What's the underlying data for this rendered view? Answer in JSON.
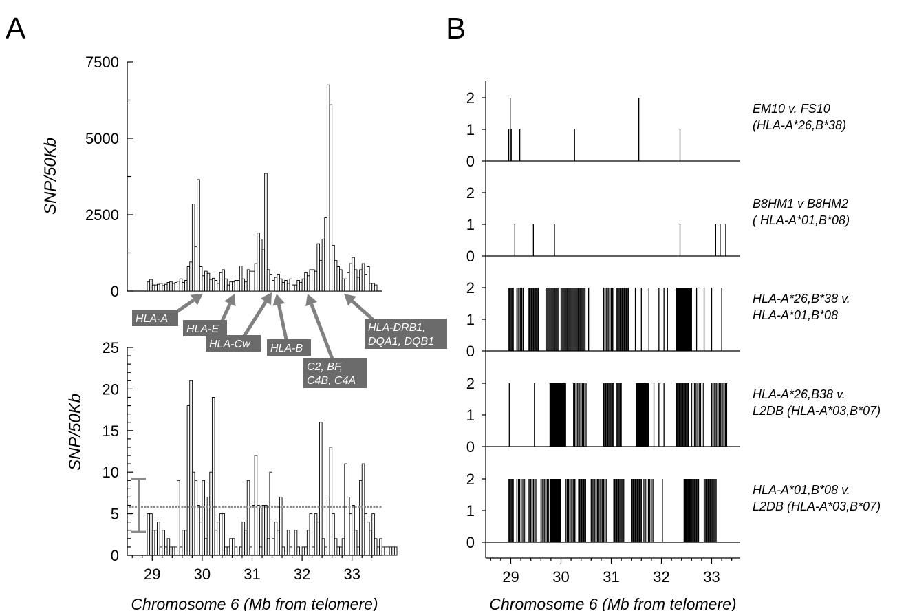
{
  "panel_labels": {
    "a": "A",
    "b": "B"
  },
  "chart_data": [
    {
      "id": "A-top",
      "type": "bar",
      "ylabel": "SNP/50Kb",
      "ylim": [
        0,
        7500
      ],
      "yticks": [
        "0",
        "2500",
        "5000",
        "7500"
      ],
      "x_start": 28.9,
      "bin_width": 0.05,
      "values": [
        300,
        380,
        200,
        200,
        220,
        250,
        180,
        220,
        280,
        300,
        250,
        280,
        320,
        400,
        280,
        350,
        800,
        950,
        2850,
        1450,
        3650,
        800,
        500,
        650,
        580,
        380,
        420,
        350,
        250,
        600,
        700,
        400,
        200,
        300,
        300,
        350,
        350,
        820,
        400,
        300,
        700,
        650,
        650,
        900,
        1900,
        1700,
        1350,
        3850,
        700,
        550,
        350,
        450,
        550,
        400,
        280,
        350,
        250,
        400,
        200,
        200,
        350,
        280,
        400,
        600,
        500,
        700,
        700,
        650,
        1550,
        1000,
        1700,
        2400,
        6750,
        6100,
        1500,
        1000,
        800,
        700,
        400,
        400,
        600,
        900,
        1100,
        700,
        450,
        700,
        900,
        550,
        800,
        250,
        250,
        200
      ],
      "annotations": [
        {
          "label": [
            "HLA-A"
          ],
          "x": 29.9
        },
        {
          "label": [
            "HLA-E"
          ],
          "x": 30.5
        },
        {
          "label": [
            "HLA-Cw"
          ],
          "x": 31.2
        },
        {
          "label": [
            "HLA-B"
          ],
          "x": 31.4
        },
        {
          "label": [
            "C2, BF,",
            "C4B, C4A"
          ],
          "x": 32.0
        },
        {
          "label": [
            "HLA-DRB1,",
            "DQA1, DQB1"
          ],
          "x": 32.7
        }
      ]
    },
    {
      "id": "A-bottom",
      "type": "bar",
      "ylabel": "SNP/50Kb",
      "xlabel": "Chromosome 6 (Mb from telomere)",
      "ylim": [
        0,
        25
      ],
      "yticks": [
        "0",
        "5",
        "10",
        "15",
        "20",
        "25"
      ],
      "xticks": [
        "29",
        "30",
        "31",
        "32",
        "33"
      ],
      "xlim": [
        28.5,
        33.5
      ],
      "x_start": 28.9,
      "bin_width": 0.05,
      "values": [
        5,
        5,
        3,
        3,
        4,
        1,
        3,
        1,
        2,
        1,
        1,
        1,
        9,
        1,
        3,
        3,
        18,
        21,
        10,
        9,
        6,
        4,
        9,
        2,
        7,
        10,
        19,
        3,
        4,
        5,
        5,
        1,
        1,
        2,
        2,
        1,
        0,
        1,
        4,
        3,
        9,
        1,
        6,
        12,
        6,
        1,
        6,
        6,
        2,
        10,
        2,
        4,
        3,
        7,
        1,
        0,
        3,
        1,
        0,
        3,
        1,
        0,
        1,
        1,
        3,
        5,
        1,
        5,
        4,
        16,
        2,
        1,
        7,
        13,
        5,
        2,
        1,
        1,
        2,
        11,
        7,
        5,
        6,
        3,
        1,
        9,
        11,
        5,
        4,
        3,
        5,
        2,
        1,
        2,
        1,
        1,
        1,
        1,
        1,
        1
      ],
      "mean": 5.8,
      "sd_range": [
        2.8,
        9.2
      ]
    },
    {
      "id": "B",
      "type": "bar",
      "xlabel": "Chromosome 6 (Mb from telomere)",
      "xticks": [
        "29",
        "30",
        "31",
        "32",
        "33"
      ],
      "xlim": [
        28.5,
        33.5
      ],
      "yticks": [
        "0",
        "1",
        "2"
      ],
      "series": [
        {
          "name": [
            "EM10 v. FS10",
            "(HLA-A*26,B*38)"
          ],
          "points": [
            [
              28.96,
              1
            ],
            [
              28.99,
              2
            ],
            [
              29.01,
              1
            ],
            [
              29.18,
              1
            ],
            [
              30.27,
              1
            ],
            [
              31.55,
              2
            ],
            [
              32.37,
              1
            ]
          ]
        },
        {
          "name": [
            "B8HM1 v B8HM2",
            "( HLA-A*01,B*08)"
          ],
          "points": [
            [
              29.08,
              1
            ],
            [
              29.45,
              1
            ],
            [
              29.87,
              1
            ],
            [
              32.37,
              1
            ],
            [
              33.08,
              1
            ],
            [
              33.17,
              1
            ],
            [
              33.28,
              1
            ]
          ]
        },
        {
          "name": [
            "HLA-A*26,B*38 v.",
            "HLA-A*01,B*08"
          ],
          "points": []
        },
        {
          "name": [
            "HLA-A*26,B38 v.",
            "L2DB (HLA-A*03,B*07)"
          ],
          "points": []
        },
        {
          "name": [
            "HLA-A*01,B*08 v.",
            "L2DB (HLA-A*03,B*07)"
          ],
          "points": []
        }
      ]
    }
  ]
}
